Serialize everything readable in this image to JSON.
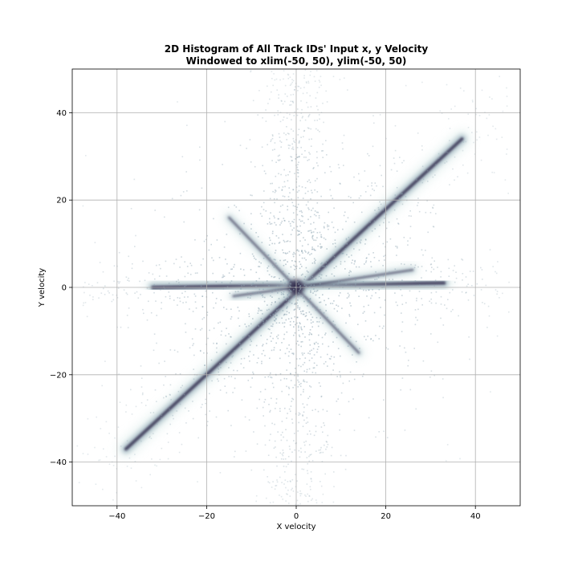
{
  "chart_data": {
    "type": "heatmap",
    "title": "2D Histogram of All Track IDs' Input x, y Velocity",
    "subtitle": "Windowed to xlim(-50, 50), ylim(-50, 50)",
    "xlabel": "X velocity",
    "ylabel": "Y velocity",
    "xlim": [
      -50,
      50
    ],
    "ylim": [
      -50,
      50
    ],
    "xticks": [
      -40,
      -20,
      0,
      20,
      40
    ],
    "yticks": [
      -40,
      -20,
      0,
      20,
      40
    ],
    "xtick_labels": [
      "−40",
      "−20",
      "0",
      "20",
      "40"
    ],
    "ytick_labels": [
      "−40",
      "−20",
      "0",
      "20",
      "40"
    ],
    "grid": true,
    "colormap": "bone_r",
    "colors": {
      "low": "#d4e8e6",
      "mid": "#8fa6b3",
      "high": "#2a2245"
    },
    "features": [
      {
        "name": "vertical-arm",
        "from": [
          0,
          -50
        ],
        "to": [
          0,
          48
        ],
        "density": "highest"
      },
      {
        "name": "diagonal-arm",
        "from": [
          -38,
          -37
        ],
        "to": [
          37,
          34
        ],
        "density": "high"
      },
      {
        "name": "horizontal-arm",
        "from": [
          -32,
          0
        ],
        "to": [
          33,
          1
        ],
        "density": "high"
      },
      {
        "name": "antidiagonal-arm",
        "from": [
          -15,
          16
        ],
        "to": [
          14,
          -15
        ],
        "density": "medium"
      },
      {
        "name": "shallow-positive-arm",
        "from": [
          0,
          0
        ],
        "to": [
          26,
          4
        ],
        "density": "medium"
      },
      {
        "name": "shallow-negative-arm",
        "from": [
          -14,
          -2
        ],
        "to": [
          0,
          0
        ],
        "density": "medium"
      }
    ]
  }
}
